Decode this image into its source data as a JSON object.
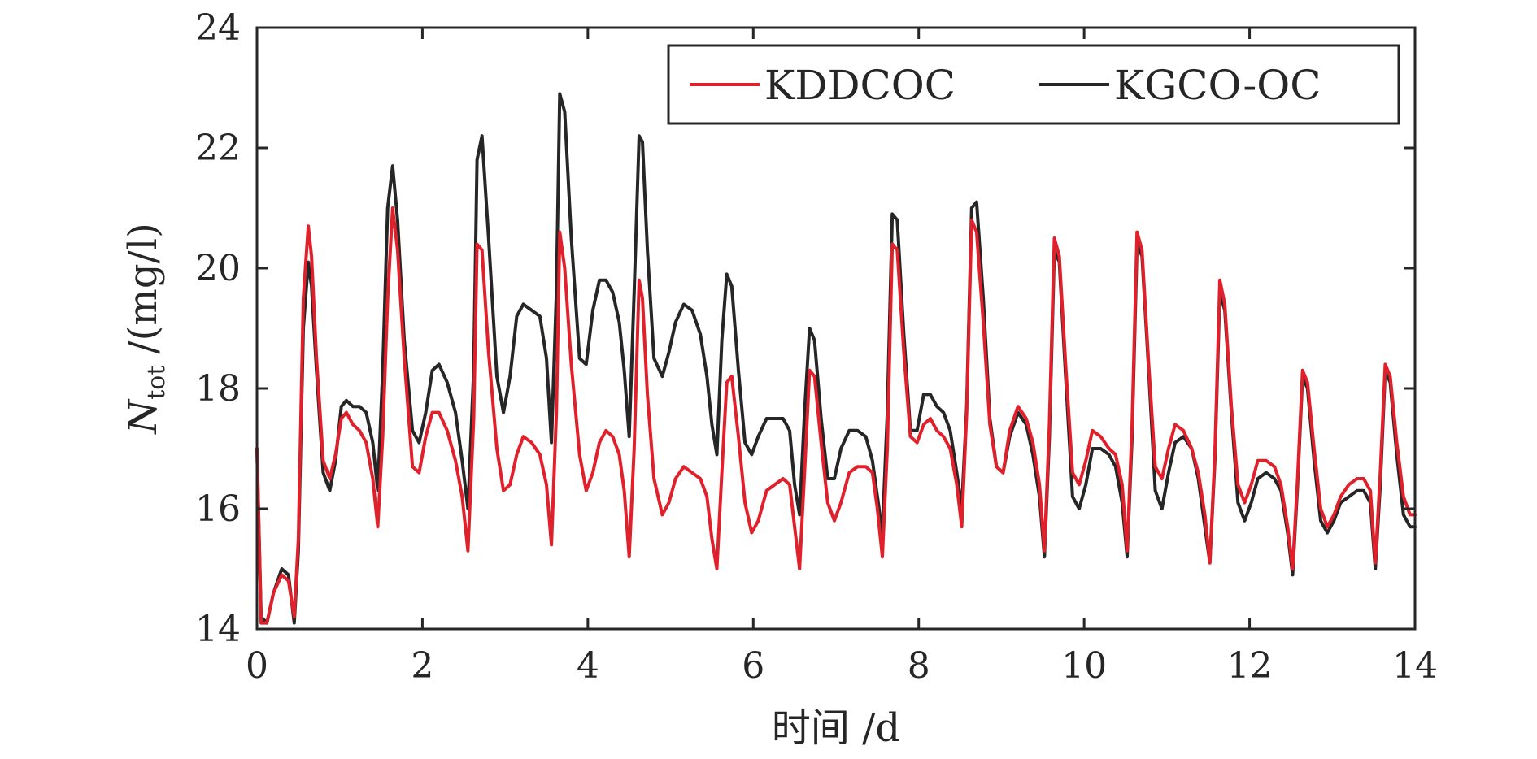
{
  "chart_data": {
    "type": "line",
    "title": "",
    "xlabel": "时间 /d",
    "ylabel": {
      "symbol": "N",
      "subscript": "tot",
      "unit": "/(mg/l)"
    },
    "xlim": [
      0,
      14
    ],
    "ylim": [
      14,
      24
    ],
    "xticks": [
      "0",
      "2",
      "4",
      "6",
      "8",
      "10",
      "12",
      "14"
    ],
    "yticks": [
      "14",
      "16",
      "18",
      "20",
      "22",
      "24"
    ],
    "grid": false,
    "legend_position": "top-right",
    "series": [
      {
        "name": "KDDCOC",
        "color": "#e0202a",
        "x": [
          0,
          0.05,
          0.12,
          0.2,
          0.3,
          0.38,
          0.45,
          0.5,
          0.56,
          0.62,
          0.66,
          0.72,
          0.8,
          0.88,
          0.95,
          1.02,
          1.08,
          1.16,
          1.24,
          1.32,
          1.4,
          1.46,
          1.52,
          1.58,
          1.64,
          1.7,
          1.78,
          1.88,
          1.96,
          2.04,
          2.12,
          2.2,
          2.3,
          2.4,
          2.48,
          2.55,
          2.62,
          2.66,
          2.72,
          2.8,
          2.9,
          2.98,
          3.06,
          3.14,
          3.22,
          3.32,
          3.42,
          3.5,
          3.56,
          3.62,
          3.66,
          3.72,
          3.8,
          3.9,
          3.98,
          4.06,
          4.14,
          4.22,
          4.3,
          4.38,
          4.44,
          4.5,
          4.56,
          4.62,
          4.66,
          4.72,
          4.8,
          4.9,
          4.98,
          5.06,
          5.16,
          5.26,
          5.36,
          5.44,
          5.5,
          5.56,
          5.62,
          5.68,
          5.74,
          5.82,
          5.9,
          5.98,
          6.06,
          6.16,
          6.26,
          6.36,
          6.44,
          6.5,
          6.56,
          6.62,
          6.68,
          6.74,
          6.82,
          6.9,
          6.98,
          7.06,
          7.16,
          7.26,
          7.36,
          7.44,
          7.5,
          7.56,
          7.62,
          7.68,
          7.74,
          7.82,
          7.9,
          7.98,
          8.06,
          8.14,
          8.22,
          8.3,
          8.38,
          8.46,
          8.52,
          8.58,
          8.64,
          8.7,
          8.78,
          8.86,
          8.94,
          9.02,
          9.1,
          9.2,
          9.3,
          9.38,
          9.46,
          9.52,
          9.58,
          9.64,
          9.7,
          9.78,
          9.86,
          9.94,
          10.02,
          10.1,
          10.2,
          10.3,
          10.38,
          10.46,
          10.52,
          10.58,
          10.64,
          10.7,
          10.78,
          10.86,
          10.94,
          11.02,
          11.1,
          11.2,
          11.3,
          11.38,
          11.46,
          11.52,
          11.58,
          11.64,
          11.7,
          11.78,
          11.86,
          11.94,
          12.02,
          12.1,
          12.2,
          12.3,
          12.38,
          12.46,
          12.52,
          12.58,
          12.64,
          12.7,
          12.78,
          12.86,
          12.94,
          13.02,
          13.1,
          13.2,
          13.3,
          13.38,
          13.46,
          13.52,
          13.58,
          13.64,
          13.7,
          13.78,
          13.86,
          13.94,
          14
        ],
        "y": [
          17,
          14.1,
          14.1,
          14.6,
          14.9,
          14.8,
          14.2,
          15.5,
          19.5,
          20.7,
          20.2,
          18.5,
          16.8,
          16.5,
          16.9,
          17.5,
          17.6,
          17.4,
          17.3,
          17.1,
          16.5,
          15.7,
          17.2,
          19.5,
          21,
          20.3,
          18.5,
          16.7,
          16.6,
          17.2,
          17.6,
          17.6,
          17.3,
          16.8,
          16.2,
          15.3,
          17.5,
          20.4,
          20.3,
          18.6,
          17,
          16.3,
          16.4,
          16.9,
          17.2,
          17.1,
          16.9,
          16.4,
          15.4,
          17.6,
          20.6,
          20,
          18.4,
          16.9,
          16.3,
          16.6,
          17.1,
          17.3,
          17.2,
          16.9,
          16.3,
          15.2,
          17,
          19.8,
          19.5,
          17.9,
          16.5,
          15.9,
          16.1,
          16.5,
          16.7,
          16.6,
          16.5,
          16.2,
          15.5,
          15,
          16.6,
          18.1,
          18.2,
          17.2,
          16.1,
          15.6,
          15.8,
          16.3,
          16.4,
          16.5,
          16.4,
          15.7,
          15,
          16.6,
          18.3,
          18.2,
          17.1,
          16.1,
          15.8,
          16.1,
          16.6,
          16.7,
          16.7,
          16.6,
          16,
          15.2,
          17,
          20.4,
          20.3,
          18.6,
          17.2,
          17.1,
          17.4,
          17.5,
          17.3,
          17.2,
          17,
          16.4,
          15.7,
          17.6,
          20.8,
          20.6,
          19.1,
          17.4,
          16.7,
          16.6,
          17.3,
          17.7,
          17.5,
          17.1,
          16.4,
          15.3,
          17.4,
          20.5,
          20.2,
          18.3,
          16.6,
          16.4,
          16.8,
          17.3,
          17.2,
          17,
          16.9,
          16.4,
          15.3,
          17.4,
          20.6,
          20.3,
          18.4,
          16.7,
          16.5,
          17,
          17.4,
          17.3,
          17,
          16.6,
          15.9,
          15.1,
          16.9,
          19.8,
          19.4,
          17.7,
          16.4,
          16.1,
          16.4,
          16.8,
          16.8,
          16.7,
          16.4,
          15.7,
          15,
          16.5,
          18.3,
          18.1,
          17,
          16,
          15.7,
          15.9,
          16.2,
          16.4,
          16.5,
          16.5,
          16.3,
          15.1,
          16.6,
          18.4,
          18.2,
          17.1,
          16.2,
          15.9,
          15.9
        ],
        "marks_note": ""
      },
      {
        "name": "KGCO-OC",
        "color": "#262626",
        "x": [
          0,
          0.05,
          0.12,
          0.2,
          0.3,
          0.38,
          0.45,
          0.5,
          0.56,
          0.62,
          0.66,
          0.72,
          0.8,
          0.88,
          0.95,
          1.02,
          1.08,
          1.16,
          1.24,
          1.32,
          1.4,
          1.46,
          1.52,
          1.58,
          1.64,
          1.7,
          1.78,
          1.88,
          1.96,
          2.04,
          2.12,
          2.2,
          2.3,
          2.4,
          2.48,
          2.55,
          2.62,
          2.66,
          2.72,
          2.8,
          2.9,
          2.98,
          3.06,
          3.14,
          3.22,
          3.32,
          3.42,
          3.5,
          3.56,
          3.62,
          3.66,
          3.72,
          3.8,
          3.9,
          3.98,
          4.06,
          4.14,
          4.22,
          4.3,
          4.38,
          4.44,
          4.5,
          4.56,
          4.62,
          4.66,
          4.72,
          4.8,
          4.9,
          4.98,
          5.06,
          5.16,
          5.26,
          5.36,
          5.44,
          5.5,
          5.56,
          5.62,
          5.68,
          5.74,
          5.82,
          5.9,
          5.98,
          6.06,
          6.16,
          6.26,
          6.36,
          6.44,
          6.5,
          6.56,
          6.62,
          6.68,
          6.74,
          6.82,
          6.9,
          6.98,
          7.06,
          7.16,
          7.26,
          7.36,
          7.44,
          7.5,
          7.56,
          7.62,
          7.68,
          7.74,
          7.82,
          7.9,
          7.98,
          8.06,
          8.14,
          8.22,
          8.3,
          8.38,
          8.46,
          8.52,
          8.58,
          8.64,
          8.7,
          8.78,
          8.86,
          8.94,
          9.02,
          9.1,
          9.2,
          9.3,
          9.38,
          9.46,
          9.52,
          9.58,
          9.64,
          9.7,
          9.78,
          9.86,
          9.94,
          10.02,
          10.1,
          10.2,
          10.3,
          10.38,
          10.46,
          10.52,
          10.58,
          10.64,
          10.7,
          10.78,
          10.86,
          10.94,
          11.02,
          11.1,
          11.2,
          11.3,
          11.38,
          11.46,
          11.52,
          11.58,
          11.64,
          11.7,
          11.78,
          11.86,
          11.94,
          12.02,
          12.1,
          12.2,
          12.3,
          12.38,
          12.46,
          12.52,
          12.58,
          12.64,
          12.7,
          12.78,
          12.86,
          12.94,
          13.02,
          13.1,
          13.2,
          13.3,
          13.38,
          13.46,
          13.52,
          13.58,
          13.64,
          13.7,
          13.78,
          13.86,
          13.94,
          14
        ],
        "y": [
          17,
          14.2,
          14.1,
          14.6,
          15,
          14.9,
          14.1,
          15.3,
          19,
          20.1,
          19.7,
          18.3,
          16.6,
          16.3,
          16.8,
          17.7,
          17.8,
          17.7,
          17.7,
          17.6,
          17.1,
          16.3,
          18.3,
          21,
          21.7,
          20.8,
          18.8,
          17.3,
          17.1,
          17.6,
          18.3,
          18.4,
          18.1,
          17.6,
          16.8,
          16,
          18.3,
          21.8,
          22.2,
          20.5,
          18.2,
          17.6,
          18.2,
          19.2,
          19.4,
          19.3,
          19.2,
          18.5,
          17.1,
          19.6,
          22.9,
          22.6,
          20.5,
          18.5,
          18.4,
          19.3,
          19.8,
          19.8,
          19.6,
          19.1,
          18.3,
          17.2,
          19.6,
          22.2,
          22.1,
          20.3,
          18.5,
          18.2,
          18.6,
          19.1,
          19.4,
          19.3,
          18.9,
          18.2,
          17.4,
          16.9,
          18.8,
          19.9,
          19.7,
          18.3,
          17.1,
          16.9,
          17.2,
          17.5,
          17.5,
          17.5,
          17.3,
          16.4,
          15.9,
          17.6,
          19,
          18.8,
          17.5,
          16.5,
          16.5,
          17,
          17.3,
          17.3,
          17.2,
          16.8,
          16.2,
          15.6,
          17.6,
          20.9,
          20.8,
          18.9,
          17.3,
          17.3,
          17.9,
          17.9,
          17.7,
          17.6,
          17.3,
          16.6,
          16,
          17.7,
          21,
          21.1,
          19.5,
          17.5,
          16.7,
          16.6,
          17.2,
          17.6,
          17.4,
          16.9,
          16.2,
          15.2,
          17.2,
          20.3,
          20.1,
          18.1,
          16.2,
          16,
          16.4,
          17,
          17,
          16.9,
          16.7,
          16.1,
          15.2,
          17.2,
          20.4,
          20.2,
          18.3,
          16.3,
          16,
          16.6,
          17.1,
          17.2,
          17,
          16.5,
          15.7,
          15.1,
          16.8,
          19.6,
          19.3,
          17.6,
          16.1,
          15.8,
          16.1,
          16.5,
          16.6,
          16.5,
          16.3,
          15.6,
          14.9,
          16.4,
          18.2,
          18,
          16.8,
          15.8,
          15.6,
          15.8,
          16.1,
          16.2,
          16.3,
          16.3,
          16.1,
          15,
          16.4,
          18.3,
          18.1,
          16.9,
          15.9,
          15.7,
          15.7
        ],
        "marks_note": ""
      }
    ]
  }
}
